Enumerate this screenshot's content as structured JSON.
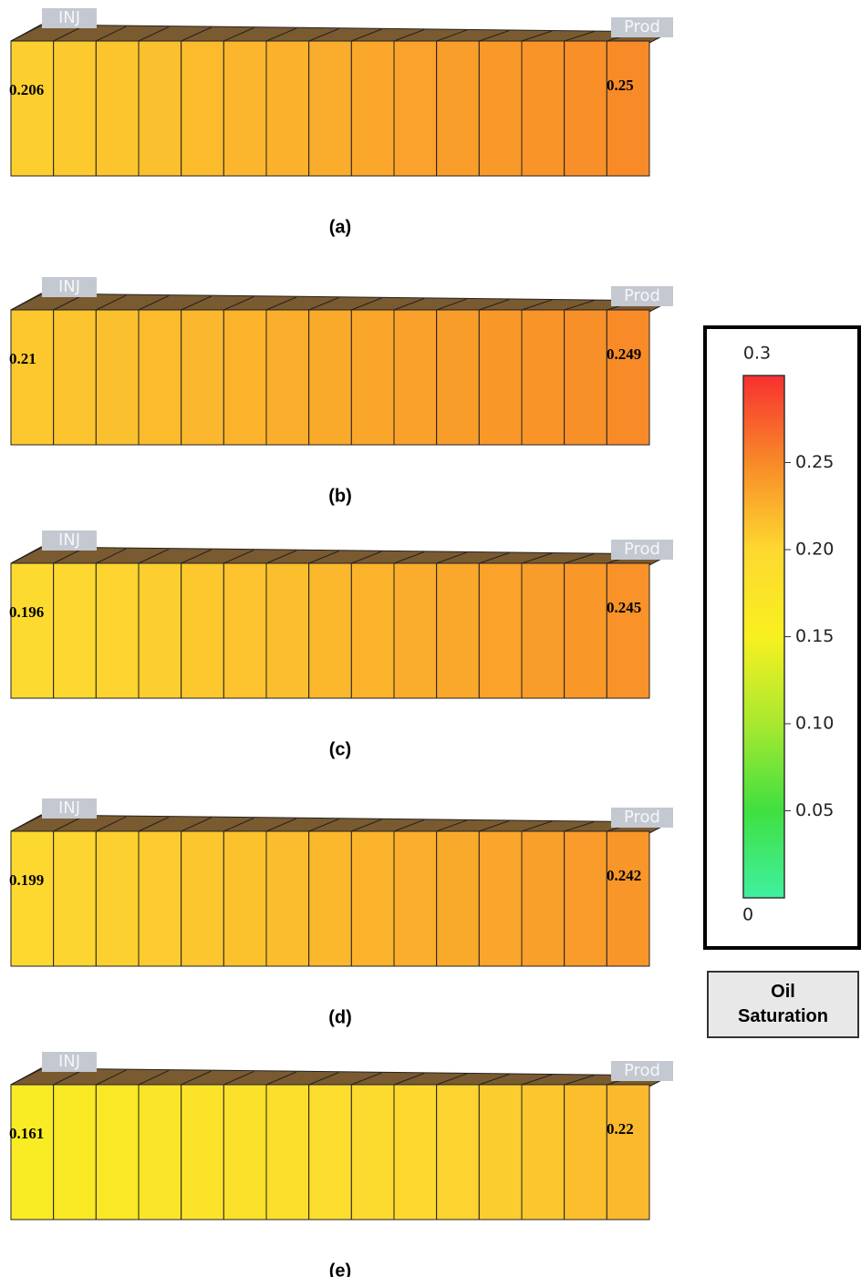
{
  "panels": [
    {
      "inj_label": "INJ",
      "prod_label": "Prod",
      "left_value": 0.206,
      "right_value": 0.25,
      "caption": "(a)"
    },
    {
      "inj_label": "INJ",
      "prod_label": "Prod",
      "left_value": 0.21,
      "right_value": 0.249,
      "caption": "(b)"
    },
    {
      "inj_label": "INJ",
      "prod_label": "Prod",
      "left_value": 0.196,
      "right_value": 0.245,
      "caption": "(c)"
    },
    {
      "inj_label": "INJ",
      "prod_label": "Prod",
      "left_value": 0.199,
      "right_value": 0.242,
      "caption": "(d)"
    },
    {
      "inj_label": "INJ",
      "prod_label": "Prod",
      "left_value": 0.161,
      "right_value": 0.22,
      "caption": "(e)"
    }
  ],
  "legend": {
    "title": "Oil Saturation",
    "max": 0.3,
    "min": 0,
    "ticks": [
      0.25,
      {
        "value": 0.2,
        "label": "0.20"
      },
      0.15,
      {
        "value": 0.1,
        "label": "0.10"
      },
      0.05
    ]
  }
}
